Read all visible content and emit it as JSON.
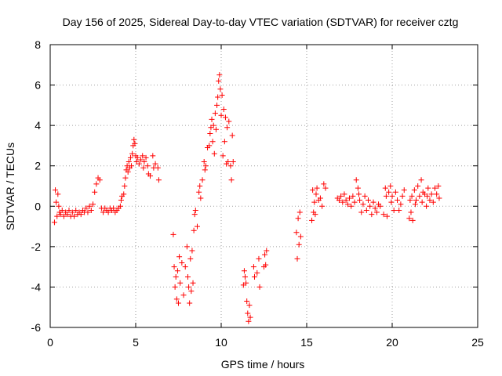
{
  "chart_data": {
    "type": "scatter",
    "title": "Day 156 of 2025, Sidereal Day-to-day VTEC variation (SDTVAR) for receiver cztg",
    "xlabel": "GPS time / hours",
    "ylabel": "SDTVAR / TECUs",
    "xlim": [
      0,
      25
    ],
    "ylim": [
      -6,
      8
    ],
    "xticks": [
      0,
      5,
      10,
      15,
      20,
      25
    ],
    "yticks": [
      -6,
      -4,
      -2,
      0,
      2,
      4,
      6,
      8
    ],
    "grid": true,
    "marker": "plus",
    "color": "#ff0000",
    "series": [
      {
        "name": "SDTVAR",
        "points": [
          [
            0.25,
            -0.8
          ],
          [
            0.3,
            0.8
          ],
          [
            0.35,
            0.2
          ],
          [
            0.4,
            -0.5
          ],
          [
            0.45,
            0.6
          ],
          [
            0.5,
            0.0
          ],
          [
            0.55,
            -0.3
          ],
          [
            0.6,
            -0.4
          ],
          [
            0.7,
            -0.2
          ],
          [
            0.8,
            -0.5
          ],
          [
            0.9,
            -0.3
          ],
          [
            1.0,
            -0.4
          ],
          [
            1.1,
            -0.2
          ],
          [
            1.2,
            -0.5
          ],
          [
            1.3,
            -0.3
          ],
          [
            1.4,
            -0.5
          ],
          [
            1.5,
            -0.2
          ],
          [
            1.6,
            -0.4
          ],
          [
            1.7,
            -0.3
          ],
          [
            1.8,
            -0.4
          ],
          [
            1.9,
            -0.2
          ],
          [
            2.0,
            -0.3
          ],
          [
            2.1,
            -0.1
          ],
          [
            2.2,
            -0.3
          ],
          [
            2.3,
            0.0
          ],
          [
            2.4,
            -0.2
          ],
          [
            2.5,
            0.1
          ],
          [
            2.6,
            0.7
          ],
          [
            2.7,
            1.1
          ],
          [
            2.8,
            1.4
          ],
          [
            2.9,
            1.3
          ],
          [
            3.0,
            -0.1
          ],
          [
            3.1,
            -0.3
          ],
          [
            3.2,
            -0.1
          ],
          [
            3.3,
            -0.2
          ],
          [
            3.4,
            -0.3
          ],
          [
            3.5,
            -0.1
          ],
          [
            3.6,
            -0.2
          ],
          [
            3.7,
            -0.1
          ],
          [
            3.8,
            -0.3
          ],
          [
            3.9,
            -0.2
          ],
          [
            4.0,
            -0.1
          ],
          [
            4.1,
            0.0
          ],
          [
            4.15,
            0.3
          ],
          [
            4.2,
            0.5
          ],
          [
            4.3,
            0.6
          ],
          [
            4.35,
            1.0
          ],
          [
            4.4,
            1.4
          ],
          [
            4.45,
            1.8
          ],
          [
            4.5,
            2.0
          ],
          [
            4.55,
            1.7
          ],
          [
            4.6,
            2.2
          ],
          [
            4.65,
            1.9
          ],
          [
            4.7,
            2.4
          ],
          [
            4.75,
            2.0
          ],
          [
            4.8,
            2.6
          ],
          [
            4.85,
            3.0
          ],
          [
            4.9,
            3.3
          ],
          [
            4.95,
            3.1
          ],
          [
            5.0,
            2.5
          ],
          [
            5.05,
            2.2
          ],
          [
            5.1,
            2.4
          ],
          [
            5.2,
            2.1
          ],
          [
            5.3,
            2.3
          ],
          [
            5.4,
            2.5
          ],
          [
            5.45,
            1.9
          ],
          [
            5.5,
            2.2
          ],
          [
            5.6,
            2.4
          ],
          [
            5.7,
            2.0
          ],
          [
            5.75,
            1.6
          ],
          [
            5.85,
            1.5
          ],
          [
            6.0,
            2.5
          ],
          [
            6.05,
            1.9
          ],
          [
            6.15,
            2.1
          ],
          [
            6.3,
            1.9
          ],
          [
            6.35,
            1.3
          ],
          [
            7.2,
            -1.4
          ],
          [
            7.25,
            -3.0
          ],
          [
            7.3,
            -4.0
          ],
          [
            7.35,
            -3.5
          ],
          [
            7.4,
            -4.6
          ],
          [
            7.45,
            -3.2
          ],
          [
            7.5,
            -4.8
          ],
          [
            7.55,
            -2.5
          ],
          [
            7.6,
            -3.8
          ],
          [
            7.7,
            -2.8
          ],
          [
            7.8,
            -4.4
          ],
          [
            7.9,
            -3.0
          ],
          [
            8.0,
            -2.0
          ],
          [
            8.05,
            -3.5
          ],
          [
            8.1,
            -4.0
          ],
          [
            8.15,
            -4.8
          ],
          [
            8.2,
            -2.6
          ],
          [
            8.25,
            -4.2
          ],
          [
            8.3,
            -2.2
          ],
          [
            8.35,
            -3.8
          ],
          [
            8.4,
            -1.2
          ],
          [
            8.45,
            -0.4
          ],
          [
            8.5,
            -0.2
          ],
          [
            8.6,
            -1.0
          ],
          [
            8.7,
            0.7
          ],
          [
            8.75,
            1.0
          ],
          [
            8.8,
            0.4
          ],
          [
            8.9,
            1.3
          ],
          [
            9.0,
            2.2
          ],
          [
            9.05,
            1.8
          ],
          [
            9.1,
            2.0
          ],
          [
            9.2,
            2.9
          ],
          [
            9.3,
            3.0
          ],
          [
            9.35,
            3.6
          ],
          [
            9.4,
            3.9
          ],
          [
            9.45,
            4.3
          ],
          [
            9.5,
            3.2
          ],
          [
            9.55,
            4.0
          ],
          [
            9.6,
            2.6
          ],
          [
            9.65,
            4.6
          ],
          [
            9.7,
            3.8
          ],
          [
            9.75,
            5.0
          ],
          [
            9.8,
            5.4
          ],
          [
            9.85,
            6.2
          ],
          [
            9.9,
            6.5
          ],
          [
            9.95,
            5.8
          ],
          [
            10.0,
            4.5
          ],
          [
            10.05,
            5.5
          ],
          [
            10.1,
            2.5
          ],
          [
            10.15,
            4.8
          ],
          [
            10.2,
            3.2
          ],
          [
            10.25,
            4.4
          ],
          [
            10.3,
            2.1
          ],
          [
            10.35,
            3.9
          ],
          [
            10.4,
            2.2
          ],
          [
            10.45,
            4.2
          ],
          [
            10.55,
            2.0
          ],
          [
            10.6,
            1.3
          ],
          [
            10.65,
            3.5
          ],
          [
            10.7,
            2.2
          ],
          [
            11.3,
            -3.9
          ],
          [
            11.35,
            -3.2
          ],
          [
            11.4,
            -3.5
          ],
          [
            11.45,
            -3.8
          ],
          [
            11.5,
            -4.7
          ],
          [
            11.55,
            -5.3
          ],
          [
            11.6,
            -5.7
          ],
          [
            11.65,
            -4.9
          ],
          [
            11.7,
            -5.5
          ],
          [
            11.9,
            -3.0
          ],
          [
            11.95,
            -3.5
          ],
          [
            12.1,
            -3.3
          ],
          [
            12.2,
            -2.6
          ],
          [
            12.25,
            -4.0
          ],
          [
            12.5,
            -3.0
          ],
          [
            12.55,
            -2.4
          ],
          [
            12.6,
            -2.9
          ],
          [
            12.65,
            -2.2
          ],
          [
            14.4,
            -1.3
          ],
          [
            14.45,
            -2.6
          ],
          [
            14.5,
            -0.6
          ],
          [
            14.55,
            -1.9
          ],
          [
            14.6,
            -0.3
          ],
          [
            14.65,
            -1.5
          ],
          [
            15.3,
            -0.7
          ],
          [
            15.35,
            0.8
          ],
          [
            15.4,
            -0.3
          ],
          [
            15.45,
            0.2
          ],
          [
            15.5,
            -0.4
          ],
          [
            15.55,
            0.6
          ],
          [
            15.6,
            0.9
          ],
          [
            15.7,
            0.3
          ],
          [
            15.8,
            0.4
          ],
          [
            15.9,
            0.0
          ],
          [
            16.0,
            1.1
          ],
          [
            16.1,
            0.9
          ],
          [
            16.8,
            0.4
          ],
          [
            16.9,
            0.3
          ],
          [
            17.0,
            0.5
          ],
          [
            17.1,
            0.2
          ],
          [
            17.2,
            0.6
          ],
          [
            17.3,
            0.3
          ],
          [
            17.4,
            0.1
          ],
          [
            17.5,
            0.4
          ],
          [
            17.6,
            0.0
          ],
          [
            17.7,
            0.5
          ],
          [
            17.8,
            0.2
          ],
          [
            17.9,
            1.3
          ],
          [
            18.0,
            0.9
          ],
          [
            18.05,
            0.6
          ],
          [
            18.1,
            0.3
          ],
          [
            18.2,
            -0.3
          ],
          [
            18.3,
            0.1
          ],
          [
            18.4,
            0.5
          ],
          [
            18.5,
            -0.2
          ],
          [
            18.6,
            0.3
          ],
          [
            18.7,
            0.0
          ],
          [
            18.8,
            -0.4
          ],
          [
            18.9,
            0.2
          ],
          [
            19.0,
            -0.1
          ],
          [
            19.1,
            -0.3
          ],
          [
            19.2,
            0.1
          ],
          [
            19.3,
            0.0
          ],
          [
            19.5,
            -0.4
          ],
          [
            19.6,
            0.9
          ],
          [
            19.65,
            0.5
          ],
          [
            19.7,
            -0.5
          ],
          [
            19.8,
            0.7
          ],
          [
            19.9,
            1.0
          ],
          [
            19.95,
            0.2
          ],
          [
            20.0,
            0.5
          ],
          [
            20.1,
            -0.2
          ],
          [
            20.2,
            0.7
          ],
          [
            20.3,
            0.3
          ],
          [
            20.4,
            -0.2
          ],
          [
            20.5,
            0.1
          ],
          [
            20.6,
            0.5
          ],
          [
            20.7,
            0.8
          ],
          [
            21.0,
            -0.6
          ],
          [
            21.05,
            0.3
          ],
          [
            21.1,
            -0.3
          ],
          [
            21.15,
            0.5
          ],
          [
            21.2,
            -0.7
          ],
          [
            21.3,
            0.8
          ],
          [
            21.35,
            0.1
          ],
          [
            21.4,
            0.3
          ],
          [
            21.5,
            1.0
          ],
          [
            21.6,
            0.5
          ],
          [
            21.7,
            1.3
          ],
          [
            21.75,
            0.2
          ],
          [
            21.8,
            0.7
          ],
          [
            21.9,
            0.6
          ],
          [
            22.0,
            0.0
          ],
          [
            22.05,
            0.5
          ],
          [
            22.1,
            0.9
          ],
          [
            22.2,
            0.3
          ],
          [
            22.3,
            0.6
          ],
          [
            22.4,
            0.2
          ],
          [
            22.5,
            0.9
          ],
          [
            22.6,
            0.6
          ],
          [
            22.7,
            1.0
          ],
          [
            22.75,
            0.4
          ]
        ]
      }
    ]
  }
}
